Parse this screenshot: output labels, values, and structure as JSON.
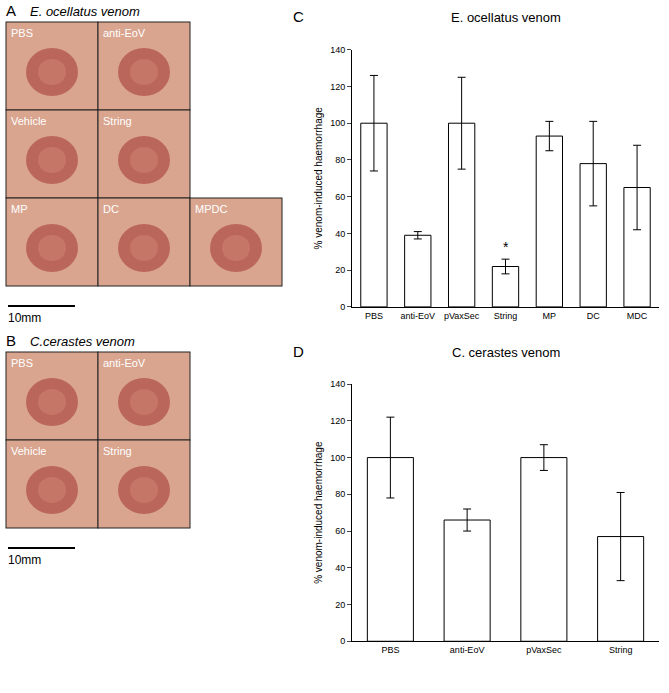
{
  "image_panels": [
    {
      "panel": "A",
      "title": "E. ocellatus venom",
      "labels": [
        "PBS",
        "anti-EoV",
        "Vehicle",
        "String",
        "MP",
        "DC",
        "MPDC"
      ],
      "scale_bar": "10mm"
    },
    {
      "panel": "B",
      "title": "C.cerastes venom",
      "labels": [
        "PBS",
        "anti-EoV",
        "Vehicle",
        "String"
      ],
      "scale_bar": "10mm"
    }
  ],
  "chart_data": [
    {
      "panel": "C",
      "type": "bar",
      "title": "E. ocellatus venom",
      "y_label": "% venom-induced haemorrhage",
      "categories": [
        "PBS",
        "anti-EoV",
        "pVaxSec",
        "String",
        "MP",
        "DC",
        "MDC"
      ],
      "values": [
        100,
        39,
        100,
        22,
        93,
        78,
        65
      ],
      "errors": [
        26,
        2,
        25,
        4,
        8,
        23,
        23
      ],
      "color": "#ffffff",
      "grid": false,
      "ylim": [
        0,
        140
      ],
      "yticks": [
        0,
        20,
        40,
        60,
        80,
        100,
        120,
        140
      ],
      "annotations": [
        {
          "category": "String",
          "text": "*"
        }
      ]
    },
    {
      "panel": "D",
      "type": "bar",
      "title": "C. cerastes venom",
      "y_label": "% venom-induced haemorrhage",
      "categories": [
        "PBS",
        "anti-EoV",
        "pVaxSec",
        "String"
      ],
      "values": [
        100,
        66,
        100,
        57
      ],
      "errors": [
        22,
        6,
        7,
        24
      ],
      "color": "#ffffff",
      "grid": false,
      "ylim": [
        0,
        140
      ],
      "yticks": [
        0,
        20,
        40,
        60,
        80,
        100,
        120,
        140
      ]
    }
  ]
}
